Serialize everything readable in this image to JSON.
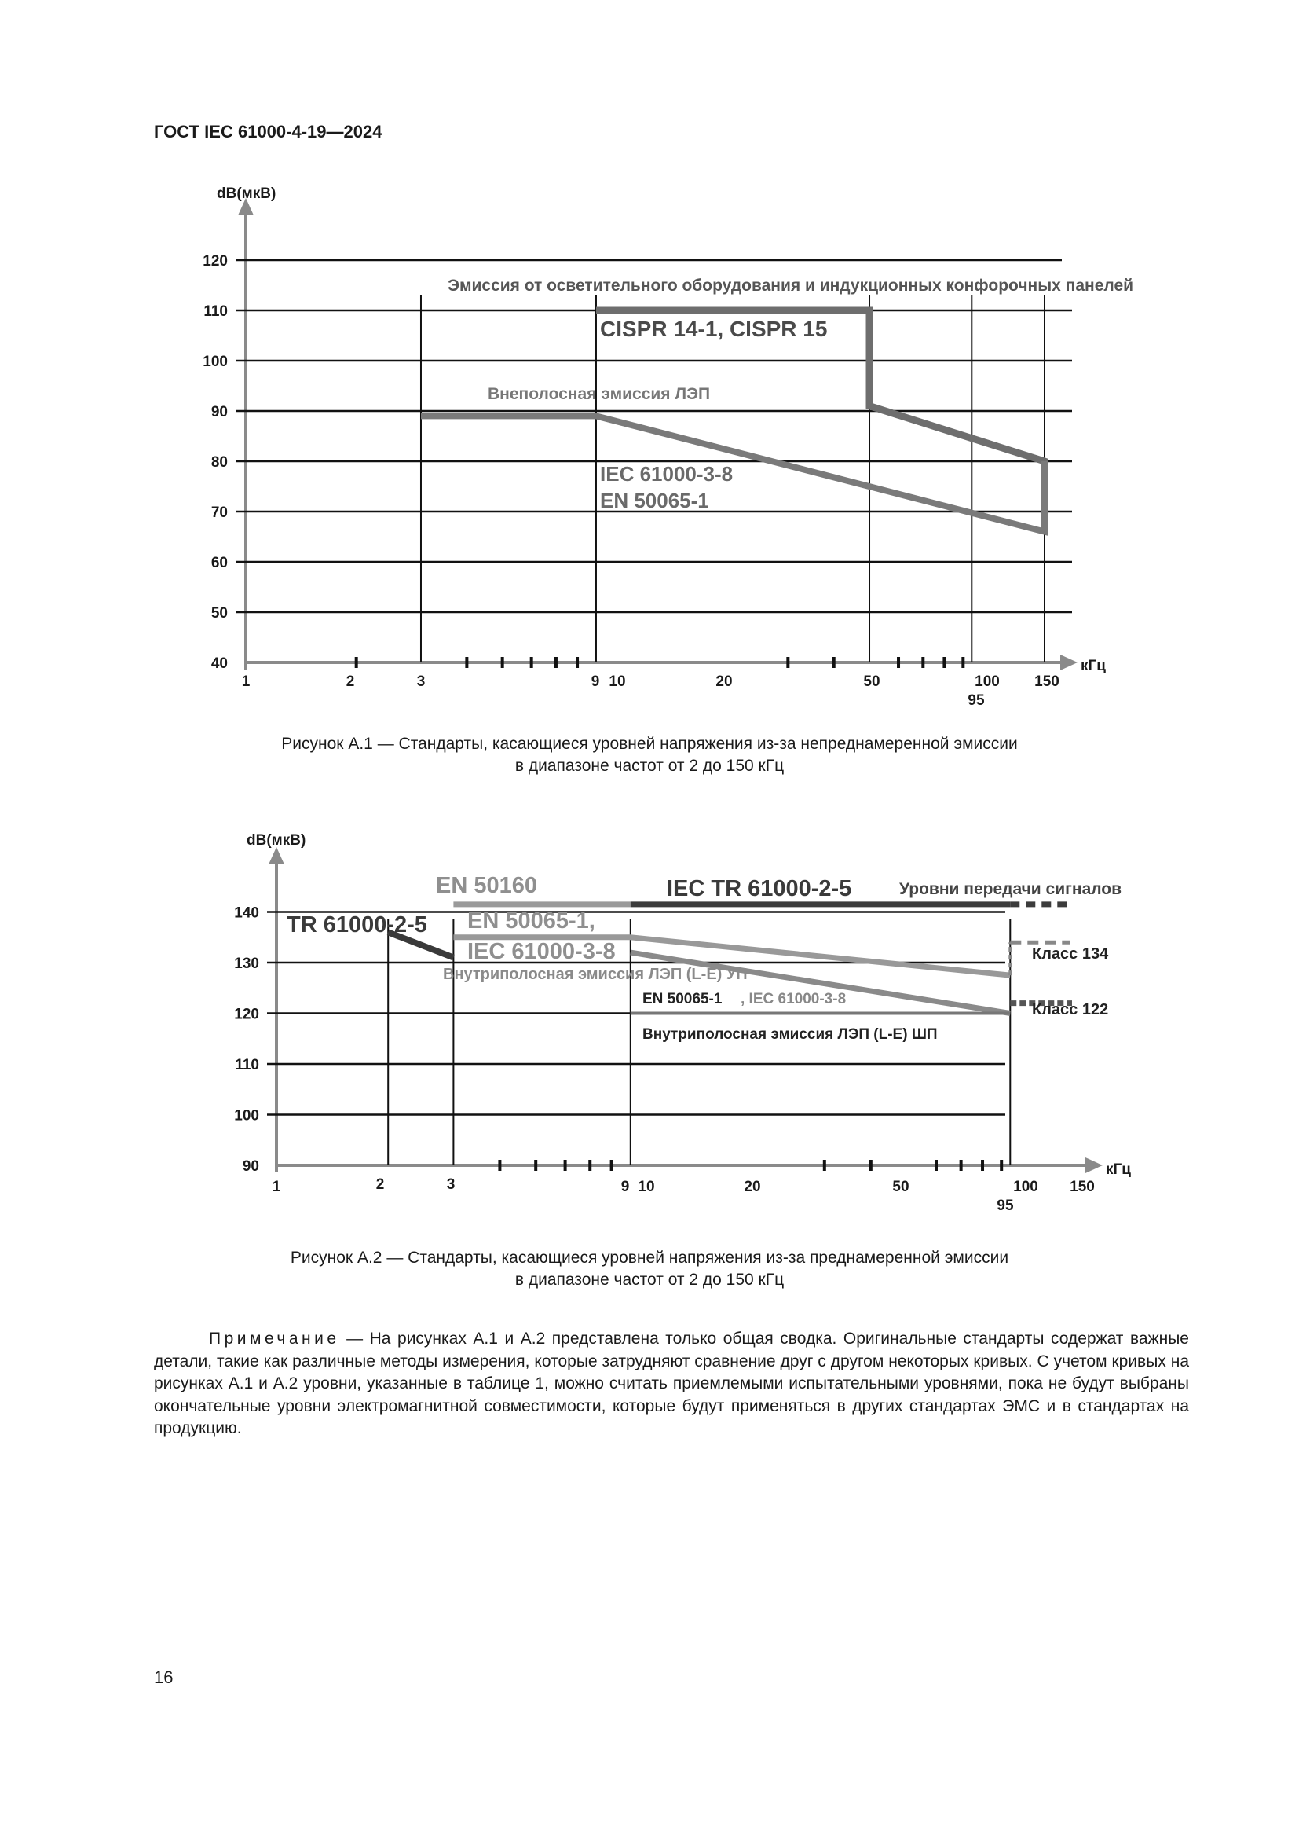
{
  "header": {
    "doc_id": "ГОСТ IEC 61000-4-19—2024"
  },
  "figure1": {
    "caption_lines": [
      "Рисунок А.1 — Стандарты, касающиеся уровней напряжения из-за непреднамеренной эмиссии",
      "в диапазоне частот от 2 до 150 кГц"
    ]
  },
  "figure2": {
    "caption_lines": [
      "Рисунок А.2 — Стандарты, касающиеся уровней напряжения из-за преднамеренной эмиссии",
      "в диапазоне частот от 2 до 150 кГц"
    ]
  },
  "note": {
    "heading": "Примечание",
    "text": " — На рисунках А.1 и А.2 представлена только общая сводка. Оригинальные стандарты содержат важные детали, такие как различные методы измерения, которые затрудняют сравнение друг с другом некоторых кривых. С учетом кривых на рисунках А.1 и А.2 уровни, указанные в таблице 1, можно считать приемлемыми испытательными уровнями, пока не будут выбраны окончательные уровни электромагнитной совместимости, которые будут применяться в других стандартах ЭМС и в стандартах на продукцию."
  },
  "page_number": "16",
  "chart_data": [
    {
      "type": "line",
      "x_scale": "log",
      "ylabel": "dB(мкВ)",
      "xlabel": "кГц",
      "ylim": [
        40,
        120
      ],
      "y_ticks": [
        "120",
        "110",
        "100",
        "90",
        "80",
        "70",
        "60",
        "50",
        "40"
      ],
      "x_ticks": [
        "1",
        "2",
        "3",
        "9",
        "10",
        "20",
        "50",
        "100",
        "95",
        "150"
      ],
      "annotations": {
        "lighting": "Эмиссия от осветительного оборудования и индукционных конфорочных панелей",
        "cispr": "CISPR 14-1, CISPR 15",
        "out_of_band": "Внеполосная эмиссия ЛЭП",
        "iec1": "IEC 61000-3-8",
        "iec2": "EN 50065-1"
      },
      "series": [
        {
          "label_ref": "cispr",
          "x": [
            9,
            50,
            50,
            150,
            150
          ],
          "y": [
            110,
            110,
            91,
            80,
            79
          ]
        },
        {
          "label_ref": "out_of_band",
          "x": [
            3,
            9,
            150,
            150
          ],
          "y": [
            89,
            89,
            66,
            80
          ]
        }
      ],
      "colors": {
        "cispr": "#6e6e6e",
        "out_of_band": "#7a7a7a"
      }
    },
    {
      "type": "line",
      "x_scale": "log",
      "ylabel": "dB(мкВ)",
      "xlabel": "кГц",
      "ylim": [
        90,
        140
      ],
      "y_ticks": [
        "140",
        "130",
        "120",
        "110",
        "100",
        "90"
      ],
      "x_ticks": [
        "1",
        "2",
        "3",
        "9",
        "10",
        "20",
        "50",
        "100",
        "95",
        "150"
      ],
      "annotations": {
        "en50160": "EN 50160",
        "iec_tr": "IEC TR 61000-2-5",
        "signals": "Уровни передачи сигналов",
        "tr": "TR 61000-2-5",
        "en50065": "EN 50065-1,",
        "iec61000": "IEC 61000-3-8",
        "inband_up": "Внутриполосная эмиссия ЛЭП (L-E) УП",
        "en_iec_small_a": "EN 50065-1",
        "en_iec_small_b": ", IEC 61000-3-8",
        "inband_shp": "Внутриполосная эмиссия ЛЭП (L-E) ШП",
        "class134": "Класс 134",
        "class122": "Класс 122"
      },
      "series": [
        {
          "label_ref": "tr",
          "x": [
            2,
            3
          ],
          "y": [
            136,
            130
          ]
        },
        {
          "label_ref": "en50160",
          "x": [
            3,
            95
          ],
          "y": [
            141,
            141
          ]
        },
        {
          "label_ref": "iec_tr",
          "x": [
            9,
            95
          ],
          "y": [
            141,
            141
          ]
        },
        {
          "label_ref": "en50065",
          "x": [
            3,
            9,
            95
          ],
          "y": [
            135,
            135,
            128
          ]
        },
        {
          "label_ref": "inband_up",
          "x": [
            9,
            95
          ],
          "y": [
            132,
            120
          ]
        },
        {
          "label_ref": "class134",
          "x": [
            95,
            150
          ],
          "y": [
            134,
            134
          ]
        },
        {
          "label_ref": "class122",
          "x": [
            95,
            150
          ],
          "y": [
            122,
            122
          ]
        }
      ],
      "colors": {
        "tr": "#3a3a3a",
        "en50160": "#9a9a9a",
        "iec_tr": "#3c3c3c",
        "up": "#8c8c8c"
      }
    }
  ]
}
